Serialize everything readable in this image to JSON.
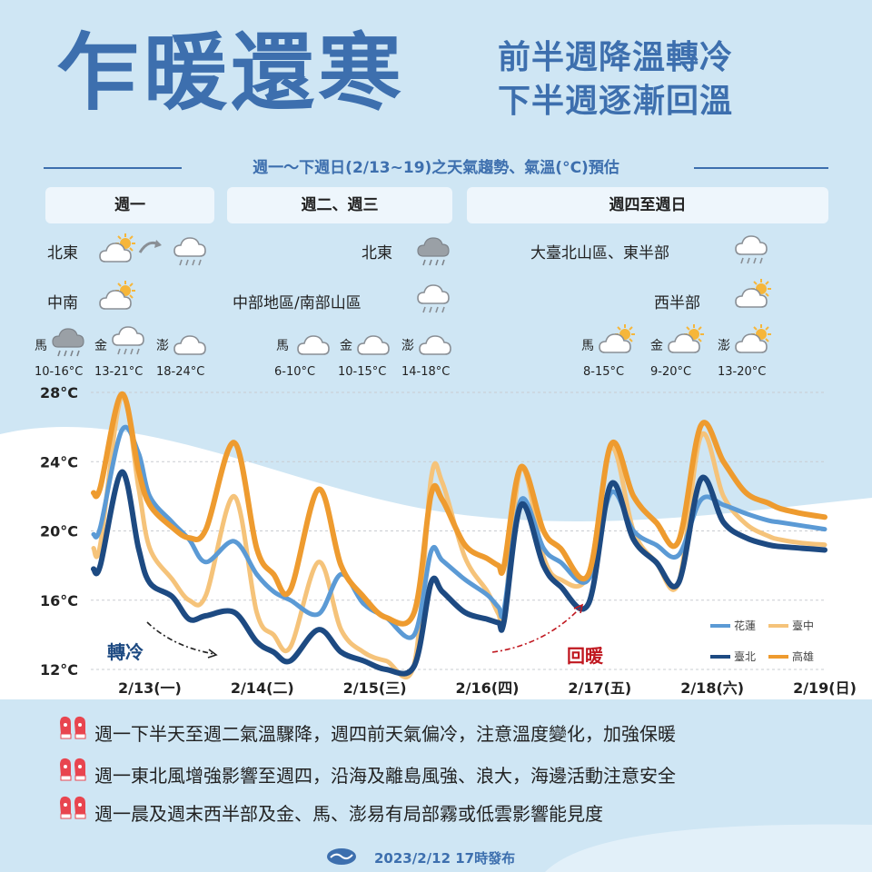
{
  "header": {
    "title": "乍暖還寒",
    "subtitle_line1": "前半週降溫轉冷",
    "subtitle_line2": "下半週逐漸回溫",
    "forecast_caption": "週一～下週日(2/13~19)之天氣趨勢、氣溫(°C)預估"
  },
  "periods": [
    {
      "label": "週一",
      "regions": [
        {
          "name": "北東",
          "icon": "partly-sunny-to-rain-icon"
        },
        {
          "name": "中南",
          "icon": "partly-sunny-icon"
        }
      ],
      "islands": [
        {
          "name": "馬",
          "icon": "rain-cloud-icon",
          "temp": "10-16°C"
        },
        {
          "name": "金",
          "icon": "rain-cloud-icon",
          "temp": "13-21°C"
        },
        {
          "name": "澎",
          "icon": "cloud-icon",
          "temp": "18-24°C"
        }
      ]
    },
    {
      "label": "週二、週三",
      "regions": [
        {
          "name": "北東",
          "icon": "rain-cloud-icon"
        },
        {
          "name": "中部地區/南部山區",
          "icon": "rain-cloud-icon"
        }
      ],
      "islands": [
        {
          "name": "馬",
          "icon": "cloud-icon",
          "temp": "6-10°C"
        },
        {
          "name": "金",
          "icon": "cloud-icon",
          "temp": "10-15°C"
        },
        {
          "name": "澎",
          "icon": "cloud-icon",
          "temp": "14-18°C"
        }
      ]
    },
    {
      "label": "週四至週日",
      "regions": [
        {
          "name": "大臺北山區、東半部",
          "icon": "rain-cloud-icon"
        },
        {
          "name": "西半部",
          "icon": "partly-sunny-icon"
        }
      ],
      "islands": [
        {
          "name": "馬",
          "icon": "partly-sunny-icon",
          "temp": "8-15°C"
        },
        {
          "name": "金",
          "icon": "partly-sunny-icon",
          "temp": "9-20°C"
        },
        {
          "name": "澎",
          "icon": "partly-sunny-icon",
          "temp": "13-20°C"
        }
      ]
    }
  ],
  "chart_data": {
    "type": "line",
    "title": "",
    "xlabel": "",
    "ylabel": "",
    "ylim": [
      12,
      28
    ],
    "yticks": [
      "28°C",
      "24°C",
      "20°C",
      "16°C",
      "12°C"
    ],
    "ytick_values": [
      28,
      24,
      20,
      16,
      12
    ],
    "categories": [
      "2/13(一)",
      "2/14(二)",
      "2/15(三)",
      "2/16(四)",
      "2/17(五)",
      "2/18(六)",
      "2/19(日)"
    ],
    "x": [
      0,
      0.06,
      0.25,
      0.4,
      0.5,
      0.7,
      0.85,
      1.0,
      1.25,
      1.45,
      1.6,
      1.75,
      2.0,
      2.2,
      2.4,
      2.6,
      2.85,
      3.0,
      3.1,
      3.3,
      3.5,
      3.6,
      3.65,
      3.8,
      4.0,
      4.15,
      4.4,
      4.6,
      4.8,
      5.0,
      5.2,
      5.4,
      5.6,
      5.8,
      6.0,
      6.1,
      6.3,
      6.5
    ],
    "series": [
      {
        "name": "花蓮",
        "color": "#5b9ad5",
        "width": 5,
        "values": [
          19.8,
          20.2,
          25.8,
          24.5,
          22,
          20.5,
          19.5,
          18.2,
          19.4,
          17.5,
          16.5,
          16,
          15.2,
          17.5,
          15.8,
          15,
          14,
          18.8,
          18.3,
          17.2,
          16.3,
          15.6,
          15.5,
          21.8,
          19,
          18.2,
          17.2,
          22.2,
          20,
          19.2,
          18.6,
          21.8,
          21.5,
          21,
          20.6,
          20.5,
          20.3,
          20.1
        ]
      },
      {
        "name": "臺中",
        "color": "#f5c37a",
        "width": 5,
        "values": [
          19,
          19.2,
          27.8,
          22.5,
          19,
          17.2,
          16,
          16.3,
          22,
          15.3,
          14,
          13.3,
          18.2,
          14.3,
          13,
          12.5,
          12.3,
          23,
          22.8,
          18.5,
          16.5,
          15.2,
          15,
          23.6,
          18.5,
          17.2,
          17.5,
          24.8,
          20,
          18.2,
          17,
          25.5,
          22,
          20.4,
          19.7,
          19.5,
          19.3,
          19.2
        ]
      },
      {
        "name": "臺北",
        "color": "#1d4a82",
        "width": 6,
        "values": [
          17.8,
          18,
          23.4,
          19,
          17,
          16.2,
          14.9,
          15.1,
          15.3,
          13.6,
          13,
          12.5,
          14.3,
          13,
          12.5,
          12,
          12.2,
          17,
          16.5,
          15.3,
          14.9,
          14.7,
          14.8,
          21.5,
          18,
          16.8,
          15.8,
          22.7,
          19.5,
          18.2,
          17,
          23,
          20.5,
          19.6,
          19.2,
          19.1,
          19,
          18.9
        ]
      },
      {
        "name": "高雄",
        "color": "#ee9b2f",
        "width": 6,
        "values": [
          22.2,
          22.5,
          27.9,
          23.5,
          21.5,
          20.2,
          19.6,
          20.1,
          25.1,
          19,
          17.5,
          16.6,
          22.4,
          18,
          16.2,
          15,
          15.3,
          22.1,
          21.8,
          19.2,
          18.4,
          18,
          18,
          23.7,
          20,
          19,
          17.5,
          25,
          22,
          20.5,
          19.4,
          26.1,
          24,
          22.2,
          21.6,
          21.3,
          21,
          20.8
        ]
      }
    ],
    "legend": [
      {
        "name": "花蓮",
        "color": "#5b9ad5"
      },
      {
        "name": "臺中",
        "color": "#f5c37a"
      },
      {
        "name": "臺北",
        "color": "#1d4a82"
      },
      {
        "name": "高雄",
        "color": "#ee9b2f"
      }
    ],
    "legend_position": "bottom-right",
    "grid": "horizontal-dashed",
    "annotations": [
      {
        "text": "轉冷",
        "color": "#1d4a82"
      },
      {
        "text": "回暖",
        "color": "#c0171f"
      }
    ]
  },
  "notes": [
    "週一下半天至週二氣溫驟降，週四前天氣偏冷，注意溫度變化，加強保暖",
    "週一東北風增強影響至週四，沿海及離島風強、浪大，海邊活動注意安全",
    "週一晨及週末西半部及金、馬、澎易有局部霧或低雲影響能見度"
  ],
  "footer": {
    "published": "2023/2/12 17時發布",
    "logo_icon": "cwb-logo-icon"
  }
}
